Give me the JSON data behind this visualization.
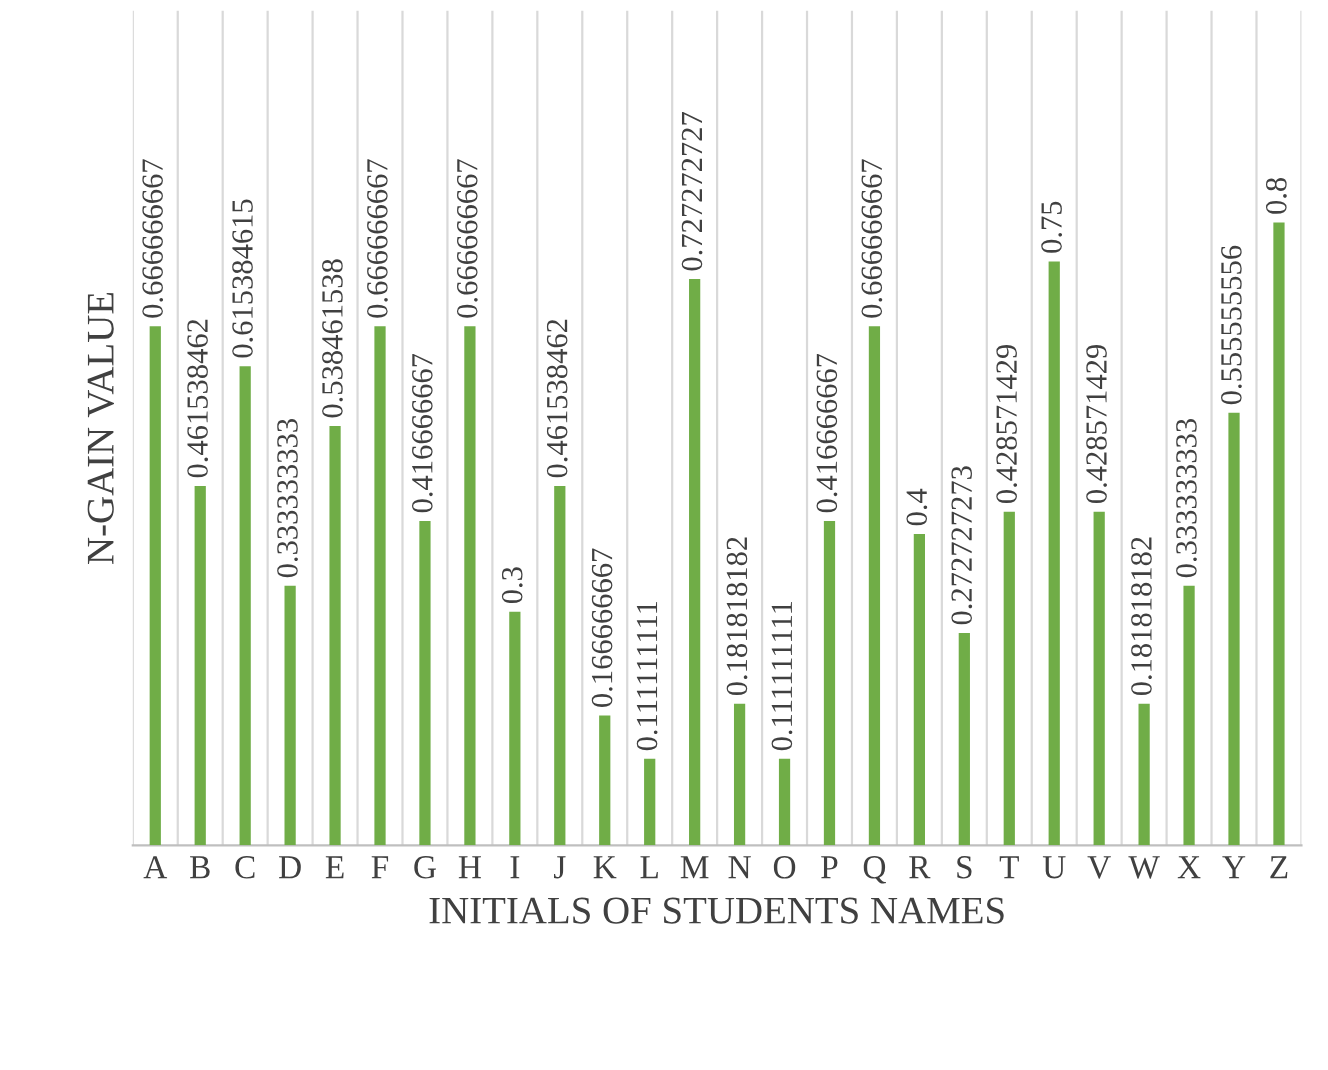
{
  "chart_data": {
    "type": "bar",
    "xlabel": "INITIALS OF STUDENTS NAMES",
    "ylabel": "N-GAIN VALUE",
    "categories": [
      "A",
      "B",
      "C",
      "D",
      "E",
      "F",
      "G",
      "H",
      "I",
      "J",
      "K",
      "L",
      "M",
      "N",
      "O",
      "P",
      "Q",
      "R",
      "S",
      "T",
      "U",
      "V",
      "W",
      "X",
      "Y",
      "Z"
    ],
    "values": [
      0.666666667,
      0.461538462,
      0.615384615,
      0.333333333,
      0.538461538,
      0.666666667,
      0.416666667,
      0.666666667,
      0.3,
      0.461538462,
      0.166666667,
      0.111111111,
      0.727272727,
      0.181818182,
      0.111111111,
      0.416666667,
      0.666666667,
      0.4,
      0.272727273,
      0.428571429,
      0.75,
      0.428571429,
      0.181818182,
      0.333333333,
      0.555555556,
      0.8
    ],
    "color": "#70ad47",
    "data_labels": true,
    "grid": "x"
  }
}
